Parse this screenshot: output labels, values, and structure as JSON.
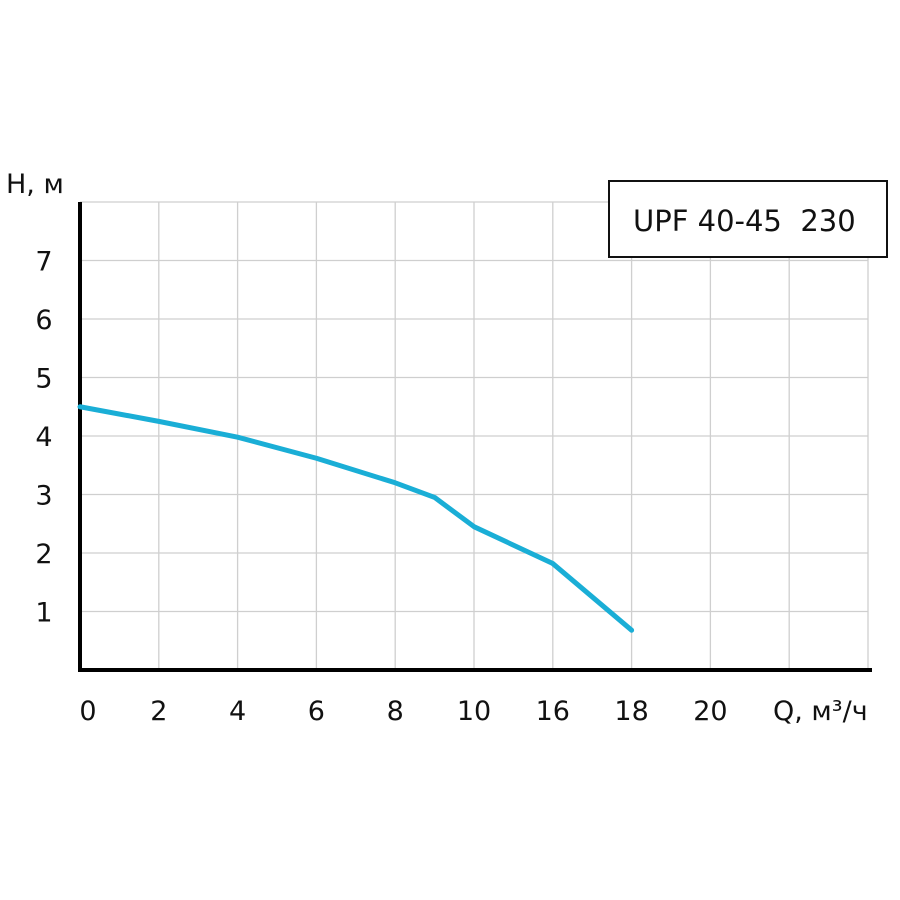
{
  "chart_data": {
    "type": "line",
    "title": "",
    "legend_label": "UPF 40-45  230",
    "legend_position": "top-right",
    "ylabel": "H, м",
    "xlabel": "Q, м³/ч",
    "x_ticks": [
      "0",
      "2",
      "4",
      "6",
      "8",
      "10",
      "16",
      "18",
      "20"
    ],
    "y_ticks": [
      "1",
      "2",
      "3",
      "4",
      "5",
      "6",
      "7"
    ],
    "ylim": [
      0,
      8
    ],
    "grid": true,
    "series": [
      {
        "color": "#1aaed6",
        "points": [
          {
            "x": 0,
            "y": 4.5
          },
          {
            "x": 2,
            "y": 4.25
          },
          {
            "x": 4,
            "y": 3.98
          },
          {
            "x": 6,
            "y": 3.62
          },
          {
            "x": 8,
            "y": 3.2
          },
          {
            "x": 9,
            "y": 2.95
          },
          {
            "x": 10,
            "y": 2.45
          },
          {
            "x": 16,
            "y": 1.82
          },
          {
            "x": 18,
            "y": 0.68
          }
        ]
      }
    ]
  }
}
